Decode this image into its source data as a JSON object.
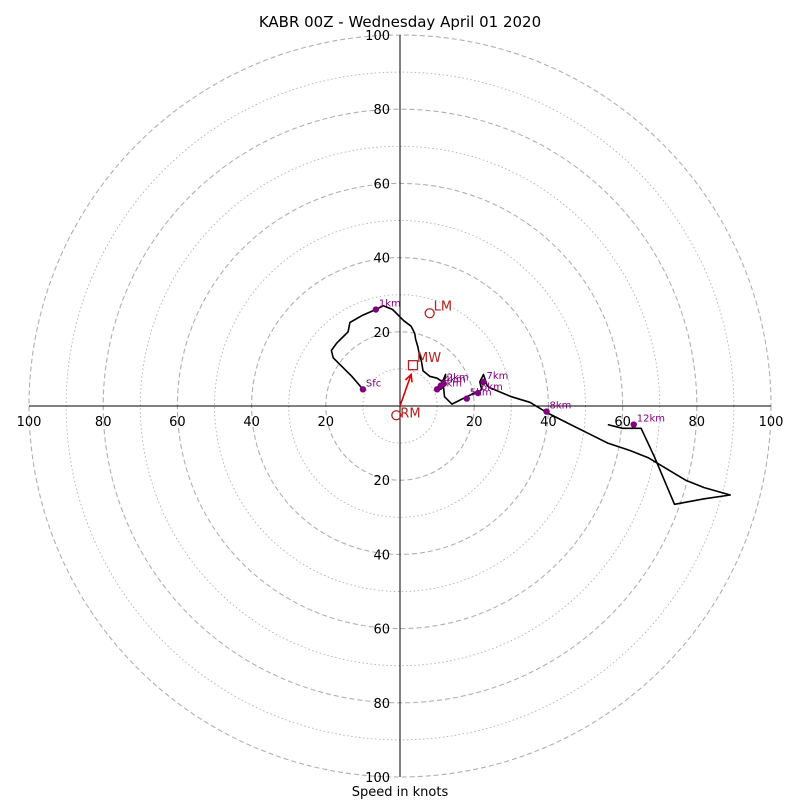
{
  "chart_data": {
    "type": "hodograph",
    "title": "KABR 00Z - Wednesday April 01 2020",
    "xlabel": "Speed in knots",
    "axis_range": [
      -100,
      100
    ],
    "ring_step_major": 20,
    "ring_step_minor": 10,
    "axis_tick_labels": {
      "x_left": [
        "100",
        "80",
        "60",
        "40",
        "20"
      ],
      "x_right": [
        "20",
        "40",
        "60",
        "80",
        "100"
      ],
      "y_up": [
        "20",
        "40",
        "60",
        "80",
        "100"
      ],
      "y_down": [
        "20",
        "40",
        "60",
        "80",
        "100"
      ]
    },
    "grid": true,
    "hodograph_trace": {
      "color": "#000000",
      "points": [
        [
          -10,
          4.5
        ],
        [
          -13,
          8
        ],
        [
          -16,
          11
        ],
        [
          -18,
          13
        ],
        [
          -18.5,
          15
        ],
        [
          -17,
          17
        ],
        [
          -15,
          19
        ],
        [
          -14,
          20
        ],
        [
          -13.5,
          22.5
        ],
        [
          -10,
          24.5
        ],
        [
          -6.5,
          26
        ],
        [
          -4.5,
          27
        ],
        [
          -2,
          26
        ],
        [
          1,
          23
        ],
        [
          3,
          21.5
        ],
        [
          3.5,
          20.5
        ],
        [
          4,
          19.5
        ],
        [
          4.2,
          18
        ],
        [
          4.8,
          16
        ],
        [
          5.2,
          14
        ],
        [
          5.8,
          12
        ],
        [
          6.2,
          9.5
        ],
        [
          8,
          8
        ],
        [
          10,
          7.5
        ],
        [
          11.5,
          6.5
        ],
        [
          12,
          5.5
        ],
        [
          11,
          4.5
        ],
        [
          10,
          5
        ],
        [
          11,
          5.5
        ],
        [
          12.3,
          8.5
        ],
        [
          11.7,
          5.5
        ],
        [
          12,
          2.5
        ],
        [
          14,
          0.5
        ],
        [
          16,
          1.5
        ],
        [
          18,
          2.5
        ],
        [
          20,
          3.5
        ],
        [
          21,
          3.5
        ],
        [
          22,
          4.5
        ],
        [
          21.5,
          6.5
        ],
        [
          22.5,
          8.5
        ],
        [
          23.5,
          5.5
        ],
        [
          24,
          5
        ],
        [
          30,
          2.5
        ],
        [
          35,
          1
        ],
        [
          40,
          -2
        ],
        [
          46,
          -5
        ],
        [
          52,
          -8
        ],
        [
          56,
          -10
        ],
        [
          62,
          -12
        ],
        [
          67,
          -14
        ],
        [
          72,
          -17
        ],
        [
          77,
          -20
        ],
        [
          82,
          -22
        ],
        [
          89,
          -24
        ],
        [
          82,
          -25
        ],
        [
          74,
          -26.5
        ],
        [
          68.5,
          -13.5
        ],
        [
          65,
          -6
        ],
        [
          60,
          -6
        ],
        [
          56,
          -5
        ]
      ]
    },
    "height_markers": [
      {
        "label": "Sfc",
        "u": -10,
        "v": 4.5
      },
      {
        "label": "1km",
        "u": -6.5,
        "v": 26
      },
      {
        "label": "2km",
        "u": 11.8,
        "v": 6
      },
      {
        "label": "3km",
        "u": 10,
        "v": 4.5
      },
      {
        "label": "4km",
        "u": 11,
        "v": 5.5
      },
      {
        "label": "5km",
        "u": 18,
        "v": 2
      },
      {
        "label": "6km",
        "u": 21,
        "v": 3.5
      },
      {
        "label": "7km",
        "u": 22.5,
        "v": 6.5
      },
      {
        "label": "8km",
        "u": 39.5,
        "v": -1.5
      },
      {
        "label": "12km",
        "u": 63,
        "v": -5
      }
    ],
    "storm_motion": {
      "color": "#b22222",
      "LM": {
        "label": "LM",
        "u": 8,
        "v": 25
      },
      "RM": {
        "label": "RM",
        "u": -1,
        "v": -2.5
      },
      "MW": {
        "label": "MW",
        "u": 3.5,
        "v": 11
      },
      "mean_wind_vector": {
        "from": [
          0,
          0
        ],
        "to": [
          3,
          8.5
        ]
      }
    }
  }
}
